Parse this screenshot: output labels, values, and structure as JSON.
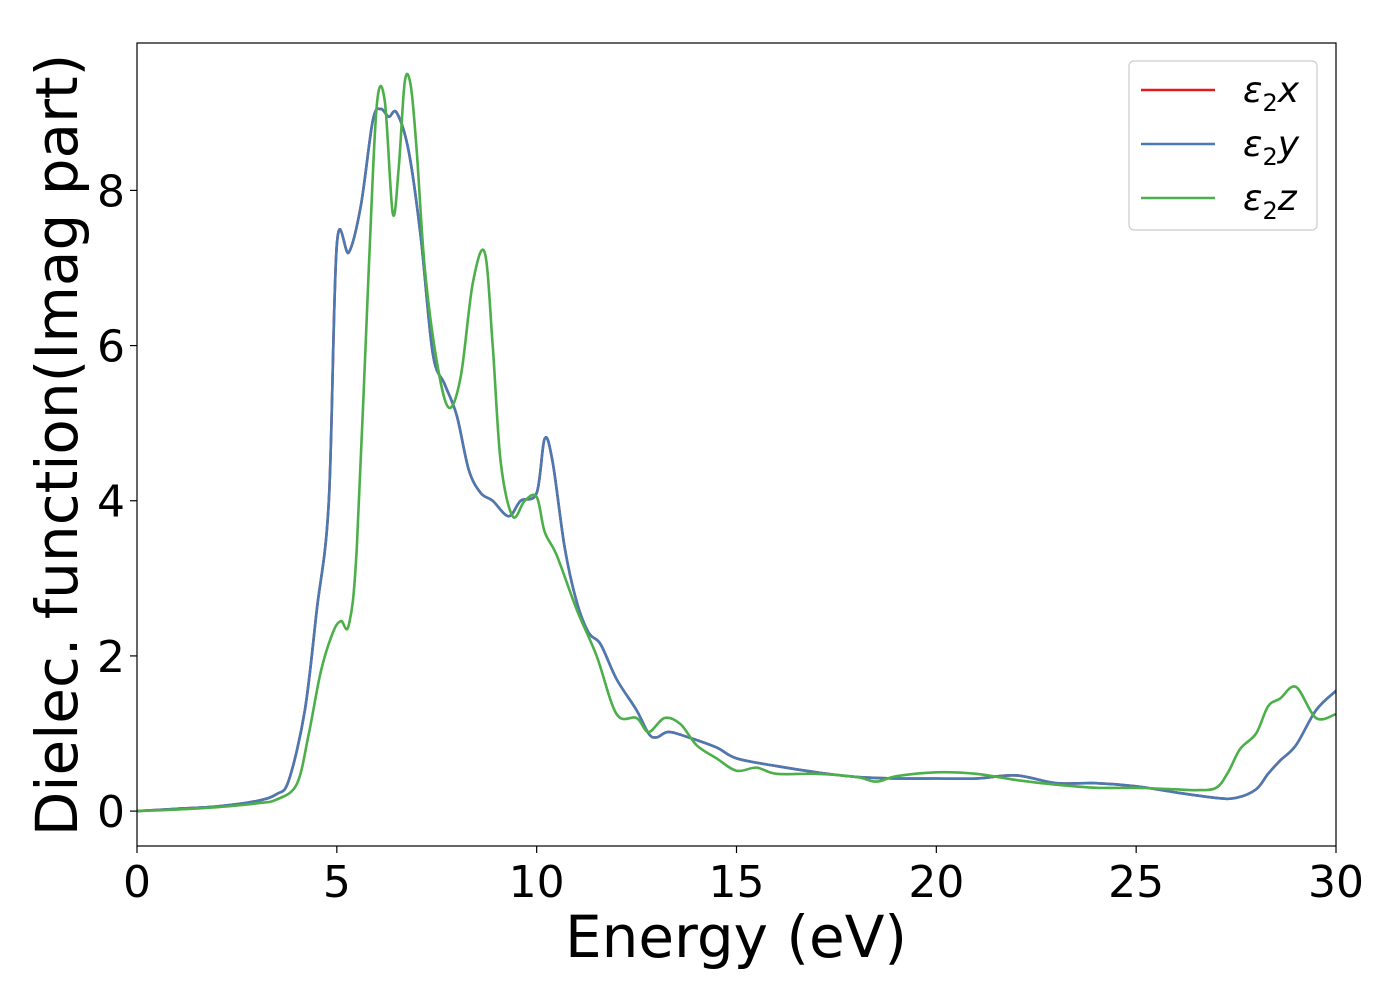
{
  "chart_data": {
    "type": "line",
    "title": "",
    "xlabel": "Energy (eV)",
    "ylabel": "Dielec. function(Imag part)",
    "xlim": [
      0,
      30
    ],
    "ylim": [
      -0.45,
      9.9
    ],
    "xticks": [
      "0",
      "5",
      "10",
      "15",
      "20",
      "25",
      "30"
    ],
    "yticks": [
      "0",
      "2",
      "4",
      "6",
      "8"
    ],
    "grid": false,
    "legend_position": "top-right",
    "series": [
      {
        "name": "ε2x",
        "legend_main": "ε",
        "legend_sub": "2",
        "legend_tail": "x",
        "color": "#e41a1c",
        "x": [
          0,
          1,
          2,
          3,
          3.5,
          3.8,
          4.2,
          4.5,
          4.8,
          5.0,
          5.3,
          5.6,
          5.9,
          6.1,
          6.3,
          6.5,
          6.8,
          7.1,
          7.4,
          7.7,
          8.0,
          8.3,
          8.6,
          8.9,
          9.3,
          9.6,
          10.0,
          10.2,
          10.4,
          10.7,
          11.0,
          11.3,
          11.6,
          12.0,
          12.5,
          12.8,
          13.0,
          13.3,
          13.8,
          14.5,
          15.0,
          16.0,
          17.0,
          18.0,
          19.0,
          20.0,
          21.0,
          22.0,
          23.0,
          24.0,
          25.0,
          26.0,
          27.0,
          27.5,
          28.0,
          28.3,
          28.6,
          29.0,
          29.5,
          30.0
        ],
        "y": [
          0,
          0.03,
          0.06,
          0.13,
          0.22,
          0.4,
          1.3,
          2.6,
          4.0,
          7.3,
          7.2,
          7.8,
          8.9,
          9.05,
          8.95,
          9.0,
          8.5,
          7.4,
          5.9,
          5.5,
          5.1,
          4.4,
          4.1,
          4.0,
          3.8,
          4.0,
          4.1,
          4.8,
          4.5,
          3.4,
          2.7,
          2.3,
          2.15,
          1.7,
          1.3,
          1.0,
          0.95,
          1.02,
          0.95,
          0.82,
          0.68,
          0.58,
          0.5,
          0.44,
          0.42,
          0.42,
          0.42,
          0.46,
          0.36,
          0.36,
          0.32,
          0.24,
          0.17,
          0.17,
          0.28,
          0.48,
          0.65,
          0.85,
          1.3,
          1.55
        ]
      },
      {
        "name": "ε2y",
        "legend_main": "ε",
        "legend_sub": "2",
        "legend_tail": "y",
        "color": "#4a7ab3",
        "x": [
          0,
          1,
          2,
          3,
          3.5,
          3.8,
          4.2,
          4.5,
          4.8,
          5.0,
          5.3,
          5.6,
          5.9,
          6.1,
          6.3,
          6.5,
          6.8,
          7.1,
          7.4,
          7.7,
          8.0,
          8.3,
          8.6,
          8.9,
          9.3,
          9.6,
          10.0,
          10.2,
          10.4,
          10.7,
          11.0,
          11.3,
          11.6,
          12.0,
          12.5,
          12.8,
          13.0,
          13.3,
          13.8,
          14.5,
          15.0,
          16.0,
          17.0,
          18.0,
          19.0,
          20.0,
          21.0,
          22.0,
          23.0,
          24.0,
          25.0,
          26.0,
          27.0,
          27.5,
          28.0,
          28.3,
          28.6,
          29.0,
          29.5,
          30.0
        ],
        "y": [
          0,
          0.03,
          0.06,
          0.13,
          0.22,
          0.4,
          1.3,
          2.6,
          4.0,
          7.3,
          7.2,
          7.8,
          8.9,
          9.05,
          8.95,
          9.0,
          8.5,
          7.4,
          5.9,
          5.5,
          5.1,
          4.4,
          4.1,
          4.0,
          3.8,
          4.0,
          4.1,
          4.8,
          4.5,
          3.4,
          2.7,
          2.3,
          2.15,
          1.7,
          1.3,
          1.0,
          0.95,
          1.02,
          0.95,
          0.82,
          0.68,
          0.58,
          0.5,
          0.44,
          0.42,
          0.42,
          0.42,
          0.46,
          0.36,
          0.36,
          0.32,
          0.24,
          0.17,
          0.17,
          0.28,
          0.48,
          0.65,
          0.85,
          1.3,
          1.55
        ]
      },
      {
        "name": "ε2z",
        "legend_main": "ε",
        "legend_sub": "2",
        "legend_tail": "z",
        "color": "#4daf4a",
        "x": [
          0,
          1,
          2,
          3,
          3.5,
          4.0,
          4.3,
          4.6,
          4.9,
          5.1,
          5.3,
          5.5,
          5.8,
          6.0,
          6.2,
          6.4,
          6.55,
          6.7,
          6.85,
          7.0,
          7.2,
          7.5,
          7.8,
          8.1,
          8.4,
          8.7,
          8.9,
          9.1,
          9.4,
          9.7,
          10.0,
          10.2,
          10.5,
          11.0,
          11.5,
          12.0,
          12.5,
          12.8,
          13.2,
          13.6,
          14.0,
          14.5,
          15.0,
          15.5,
          16.0,
          17.0,
          18.0,
          18.5,
          19.0,
          20.0,
          21.0,
          22.0,
          23.0,
          24.0,
          25.0,
          26.0,
          26.5,
          27.0,
          27.3,
          27.6,
          28.0,
          28.3,
          28.6,
          29.0,
          29.5,
          30.0
        ],
        "y": [
          0,
          0.02,
          0.05,
          0.1,
          0.15,
          0.35,
          1.0,
          1.8,
          2.3,
          2.45,
          2.4,
          3.4,
          7.0,
          9.1,
          9.15,
          7.7,
          8.3,
          9.4,
          9.35,
          8.5,
          7.0,
          5.8,
          5.2,
          5.6,
          6.8,
          7.2,
          6.0,
          4.5,
          3.8,
          4.0,
          4.05,
          3.6,
          3.3,
          2.6,
          2.0,
          1.25,
          1.2,
          1.02,
          1.2,
          1.12,
          0.85,
          0.68,
          0.52,
          0.56,
          0.48,
          0.48,
          0.44,
          0.38,
          0.45,
          0.5,
          0.48,
          0.4,
          0.34,
          0.3,
          0.3,
          0.28,
          0.27,
          0.3,
          0.5,
          0.8,
          1.0,
          1.35,
          1.45,
          1.6,
          1.2,
          1.25
        ]
      }
    ]
  }
}
